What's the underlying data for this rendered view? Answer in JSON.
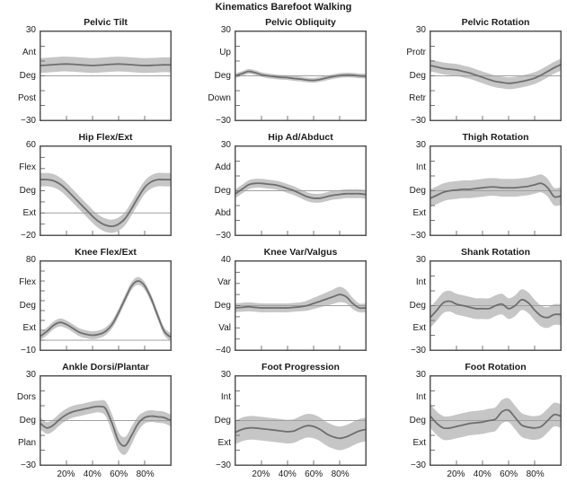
{
  "title": "Kinematics Barefoot Walking",
  "x_tick_labels": [
    "20%",
    "40%",
    "60%",
    "80%"
  ],
  "x_tick_positions": [
    20,
    40,
    60,
    80
  ],
  "style": {
    "border_color": "#555555",
    "band_color": "#c6c6c6",
    "mean_line_color": "#6e6e6e",
    "zero_line_color": "#a0a0a0",
    "tick_color": "#777777",
    "text_color": "#1c1c1c"
  },
  "chart_data": [
    {
      "type": "line",
      "title": "Pelvic Tilt",
      "ylim": [
        -30,
        30
      ],
      "y_axis_labels": [
        "30",
        "Ant",
        "Deg",
        "Post",
        "−30"
      ],
      "x": [
        0,
        5,
        10,
        15,
        20,
        25,
        30,
        35,
        40,
        45,
        50,
        55,
        60,
        65,
        70,
        75,
        80,
        85,
        90,
        95,
        100
      ],
      "mean": [
        7,
        7.3,
        7.6,
        7.9,
        8,
        7.8,
        7.5,
        7.2,
        7,
        7.2,
        7.5,
        7.8,
        8,
        7.8,
        7.5,
        7.2,
        7,
        7.1,
        7.3,
        7.5,
        7.4
      ],
      "band_halfwidth": 5,
      "show_x_labels": false
    },
    {
      "type": "line",
      "title": "Pelvic Obliquity",
      "ylim": [
        -30,
        30
      ],
      "y_axis_labels": [
        "30",
        "Up",
        "Deg",
        "Down",
        "−30"
      ],
      "x": [
        0,
        5,
        10,
        15,
        20,
        25,
        30,
        35,
        40,
        45,
        50,
        55,
        60,
        65,
        70,
        75,
        80,
        85,
        90,
        95,
        100
      ],
      "mean": [
        0,
        1.5,
        3,
        2.2,
        0.8,
        0,
        -0.5,
        -1,
        -1.2,
        -1.8,
        -2.2,
        -2.8,
        -3,
        -2.4,
        -1.4,
        -0.5,
        0.2,
        0.5,
        0.4,
        0,
        -0.2
      ],
      "band_halfwidth": 1.6,
      "show_x_labels": false
    },
    {
      "type": "line",
      "title": "Pelvic Rotation",
      "ylim": [
        -30,
        30
      ],
      "y_axis_labels": [
        "30",
        "Protr",
        "Deg",
        "Retr",
        "−30"
      ],
      "x": [
        0,
        5,
        10,
        15,
        20,
        25,
        30,
        35,
        40,
        45,
        50,
        55,
        60,
        65,
        70,
        75,
        80,
        85,
        90,
        95,
        100
      ],
      "mean": [
        7,
        6,
        5,
        4.5,
        4,
        3,
        2,
        0.5,
        -1,
        -2.5,
        -3.8,
        -4.5,
        -5,
        -4.6,
        -3.8,
        -2.8,
        -1.5,
        0.5,
        3,
        5.5,
        7.5
      ],
      "band_halfwidth": 4,
      "show_x_labels": false
    },
    {
      "type": "line",
      "title": "Hip Flex/Ext",
      "ylim": [
        -20,
        60
      ],
      "y_axis_labels": [
        "60",
        "Flex",
        "Deg",
        "Ext",
        "−20"
      ],
      "x": [
        0,
        5,
        10,
        15,
        20,
        25,
        30,
        35,
        40,
        45,
        50,
        55,
        60,
        65,
        70,
        75,
        80,
        85,
        90,
        95,
        100
      ],
      "mean": [
        30,
        30,
        29,
        26,
        21,
        15,
        9,
        3,
        -3,
        -8,
        -11,
        -12,
        -10,
        -5,
        4,
        14,
        23,
        28,
        30,
        30,
        30
      ],
      "band_halfwidth": 6,
      "show_x_labels": false
    },
    {
      "type": "line",
      "title": "Hip Ad/Abduct",
      "ylim": [
        -30,
        30
      ],
      "y_axis_labels": [
        "30",
        "Add",
        "Deg",
        "Abd",
        "−30"
      ],
      "x": [
        0,
        5,
        10,
        15,
        20,
        25,
        30,
        35,
        40,
        45,
        50,
        55,
        60,
        65,
        70,
        75,
        80,
        85,
        90,
        95,
        100
      ],
      "mean": [
        -2,
        1,
        4,
        5,
        5,
        4.5,
        4,
        3,
        1.5,
        0,
        -2,
        -4,
        -5,
        -5,
        -4,
        -3,
        -2.5,
        -2,
        -2,
        -2,
        -2.5
      ],
      "band_halfwidth": 3,
      "show_x_labels": false
    },
    {
      "type": "line",
      "title": "Thigh Rotation",
      "ylim": [
        -30,
        30
      ],
      "y_axis_labels": [
        "30",
        "Int",
        "Deg",
        "Ext",
        "−30"
      ],
      "x": [
        0,
        5,
        10,
        15,
        20,
        25,
        30,
        35,
        40,
        45,
        50,
        55,
        60,
        65,
        70,
        75,
        80,
        85,
        90,
        95,
        100
      ],
      "mean": [
        -5,
        -3,
        -1,
        0,
        0.5,
        1,
        1,
        1.5,
        2,
        2.5,
        2.5,
        2,
        2,
        2,
        2.5,
        3,
        4,
        5,
        2,
        -4,
        -3.5
      ],
      "band_halfwidth": 6,
      "show_x_labels": false
    },
    {
      "type": "line",
      "title": "Knee Flex/Ext",
      "ylim": [
        -10,
        80
      ],
      "y_axis_labels": [
        "80",
        "Flex",
        "Deg",
        "Ext",
        "−10"
      ],
      "x": [
        0,
        5,
        10,
        15,
        20,
        25,
        30,
        35,
        40,
        45,
        50,
        55,
        60,
        65,
        70,
        75,
        80,
        85,
        90,
        95,
        100
      ],
      "mean": [
        4,
        9,
        15,
        18,
        16,
        12,
        8,
        6,
        5,
        6,
        9,
        16,
        28,
        42,
        55,
        60,
        55,
        42,
        25,
        9,
        3
      ],
      "band_halfwidth": 4,
      "show_x_labels": false
    },
    {
      "type": "line",
      "title": "Knee Var/Valgus",
      "ylim": [
        -40,
        40
      ],
      "y_axis_labels": [
        "40",
        "Var",
        "Deg",
        "Val",
        "−40"
      ],
      "x": [
        0,
        5,
        10,
        15,
        20,
        25,
        30,
        35,
        40,
        45,
        50,
        55,
        60,
        65,
        70,
        75,
        80,
        85,
        90,
        95,
        100
      ],
      "mean": [
        -2,
        -1.5,
        -1,
        -1.5,
        -2,
        -2,
        -2,
        -2,
        -2,
        -1.5,
        -1,
        0,
        2,
        4,
        6,
        8,
        10,
        8,
        2,
        -2,
        -2
      ],
      "band_halfwidth": [
        4,
        4,
        4,
        4,
        4,
        4,
        4,
        4,
        4,
        4,
        4,
        4.5,
        5,
        5.5,
        6,
        6.5,
        7,
        6,
        5,
        4,
        4
      ],
      "show_x_labels": false
    },
    {
      "type": "line",
      "title": "Shank Rotation",
      "ylim": [
        -30,
        30
      ],
      "y_axis_labels": [
        "30",
        "Int",
        "Deg",
        "Ext",
        "−30"
      ],
      "x": [
        0,
        5,
        10,
        15,
        20,
        25,
        30,
        35,
        40,
        45,
        50,
        55,
        60,
        65,
        70,
        75,
        80,
        85,
        90,
        95,
        100
      ],
      "mean": [
        -8,
        -3,
        2,
        3,
        1,
        0,
        -1,
        -2,
        -2,
        -2,
        0,
        1,
        -2,
        0,
        4,
        2,
        -3,
        -7,
        -8,
        -6,
        -6
      ],
      "band_halfwidth": 7,
      "show_x_labels": false
    },
    {
      "type": "line",
      "title": "Ankle Dorsi/Plantar",
      "ylim": [
        -30,
        30
      ],
      "y_axis_labels": [
        "30",
        "Dors",
        "Deg",
        "Plan",
        "−30"
      ],
      "x": [
        0,
        5,
        10,
        15,
        20,
        25,
        30,
        35,
        40,
        45,
        50,
        55,
        60,
        65,
        70,
        75,
        80,
        85,
        90,
        95,
        100
      ],
      "mean": [
        -2,
        -5,
        -3,
        1,
        4,
        6,
        7,
        8,
        9,
        9.5,
        8,
        -2,
        -14,
        -17,
        -10,
        -2,
        2,
        3,
        2.5,
        2,
        0
      ],
      "band_halfwidth": [
        4,
        4,
        4,
        4,
        4,
        4,
        4,
        4,
        4,
        4,
        5,
        6,
        6,
        6,
        6,
        5,
        4,
        4,
        4,
        4,
        4
      ],
      "show_x_labels": true
    },
    {
      "type": "line",
      "title": "Foot Progression",
      "ylim": [
        -30,
        30
      ],
      "y_axis_labels": [
        "30",
        "Int",
        "Deg",
        "Ext",
        "−30"
      ],
      "x": [
        0,
        5,
        10,
        15,
        20,
        25,
        30,
        35,
        40,
        45,
        50,
        55,
        60,
        65,
        70,
        75,
        80,
        85,
        90,
        95,
        100
      ],
      "mean": [
        -8,
        -6,
        -5,
        -5,
        -5.5,
        -6,
        -6.5,
        -7,
        -7.5,
        -7,
        -5,
        -3.5,
        -4,
        -6,
        -9,
        -11,
        -12,
        -11,
        -9,
        -7,
        -6
      ],
      "band_halfwidth": 8,
      "show_x_labels": true
    },
    {
      "type": "line",
      "title": "Foot Rotation",
      "ylim": [
        -30,
        30
      ],
      "y_axis_labels": [
        "30",
        "Int",
        "Deg",
        "Ext",
        "−30"
      ],
      "x": [
        0,
        5,
        10,
        15,
        20,
        25,
        30,
        35,
        40,
        45,
        50,
        55,
        60,
        65,
        70,
        75,
        80,
        85,
        90,
        95,
        100
      ],
      "mean": [
        3,
        -2,
        -5,
        -5,
        -4,
        -3,
        -2,
        -1.5,
        -1,
        0,
        1,
        6,
        7,
        2,
        -3,
        -4.5,
        -5,
        -4,
        0,
        4,
        3
      ],
      "band_halfwidth": 8,
      "show_x_labels": true
    }
  ]
}
